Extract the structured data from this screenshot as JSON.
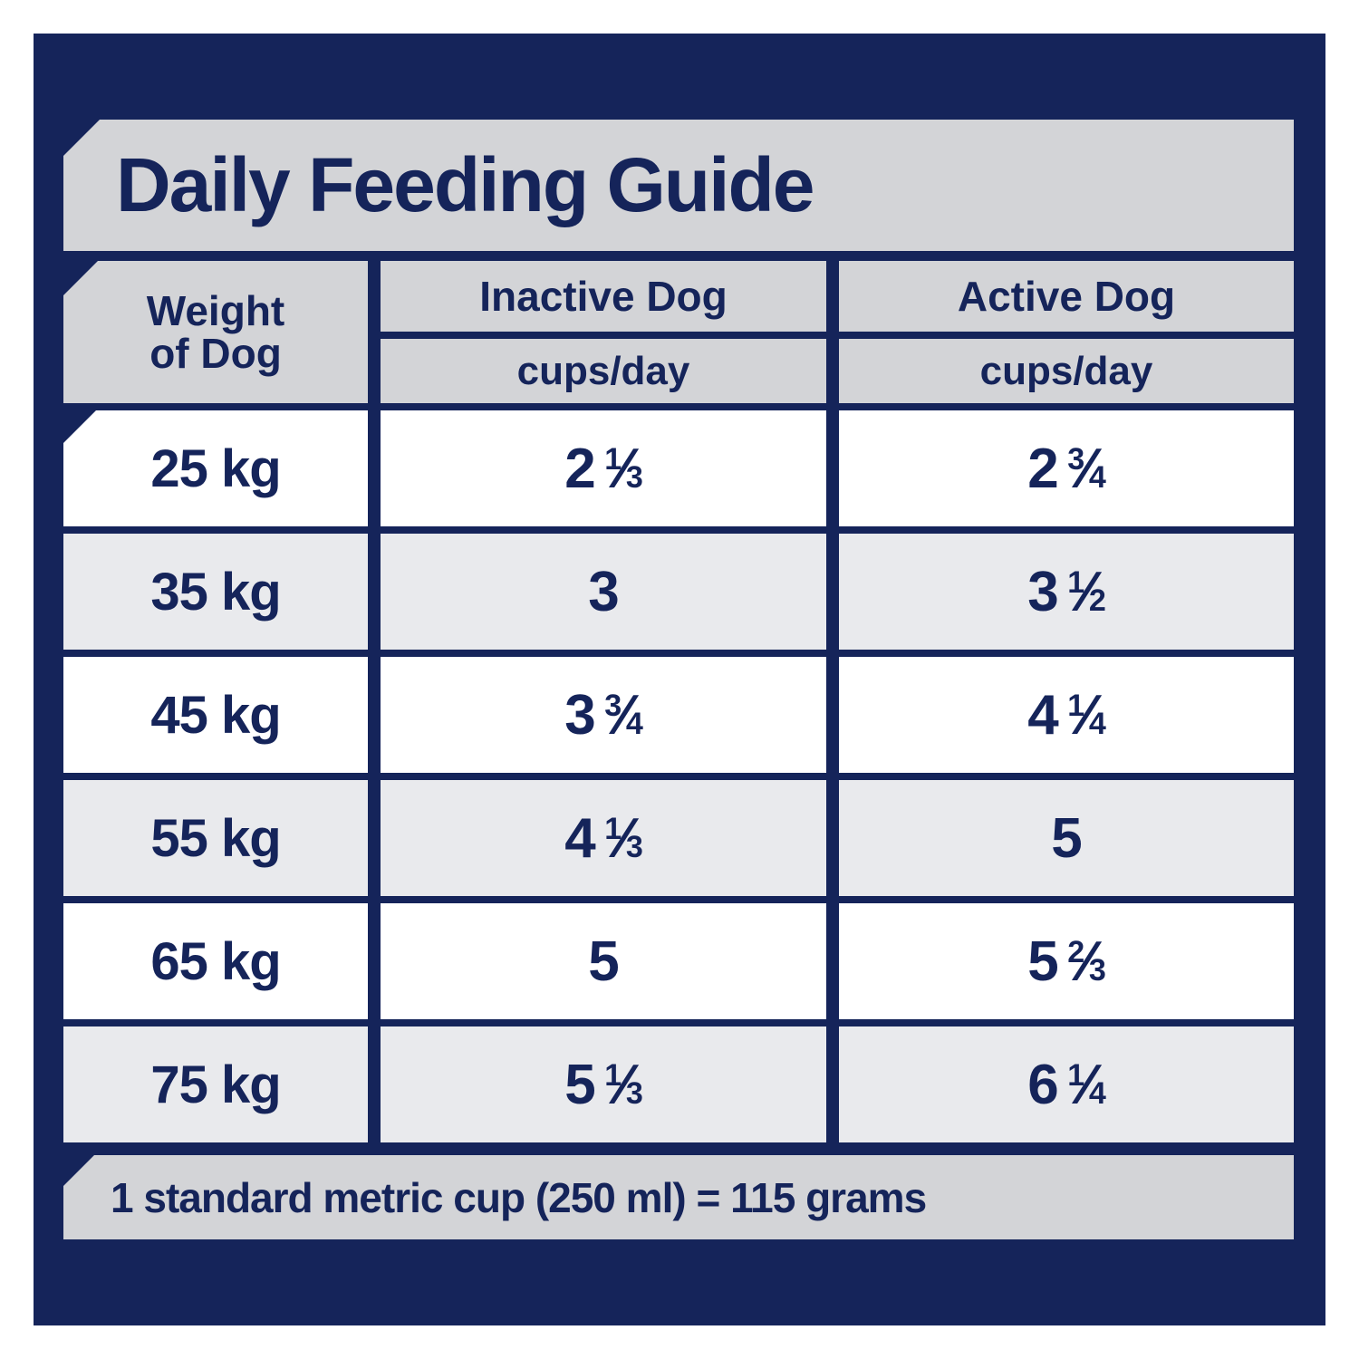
{
  "title": "Daily Feeding Guide",
  "table": {
    "header": {
      "weight_line1": "Weight",
      "weight_line2": "of Dog",
      "inactive_label": "Inactive Dog",
      "inactive_unit": "cups/day",
      "active_label": "Active Dog",
      "active_unit": "cups/day"
    },
    "rows": [
      {
        "weight": "25 kg",
        "inactive": {
          "whole": "2",
          "num": "1",
          "den": "3"
        },
        "active": {
          "whole": "2",
          "num": "3",
          "den": "4"
        }
      },
      {
        "weight": "35 kg",
        "inactive": {
          "whole": "3",
          "num": "",
          "den": ""
        },
        "active": {
          "whole": "3",
          "num": "1",
          "den": "2"
        }
      },
      {
        "weight": "45 kg",
        "inactive": {
          "whole": "3",
          "num": "3",
          "den": "4"
        },
        "active": {
          "whole": "4",
          "num": "1",
          "den": "4"
        }
      },
      {
        "weight": "55 kg",
        "inactive": {
          "whole": "4",
          "num": "1",
          "den": "3"
        },
        "active": {
          "whole": "5",
          "num": "",
          "den": ""
        }
      },
      {
        "weight": "65 kg",
        "inactive": {
          "whole": "5",
          "num": "",
          "den": ""
        },
        "active": {
          "whole": "5",
          "num": "2",
          "den": "3"
        }
      },
      {
        "weight": "75 kg",
        "inactive": {
          "whole": "5",
          "num": "1",
          "den": "3"
        },
        "active": {
          "whole": "6",
          "num": "1",
          "den": "4"
        }
      }
    ]
  },
  "footnote": "1 standard metric cup (250 ml) = 115 grams",
  "symbols": {
    "fraction_slash": "⁄"
  },
  "colors": {
    "navy": "#15245A",
    "banner_gray": "#D3D4D7",
    "row_gray": "#E9EAED",
    "row_white": "#FFFFFF",
    "text_navy": "#15245A"
  }
}
